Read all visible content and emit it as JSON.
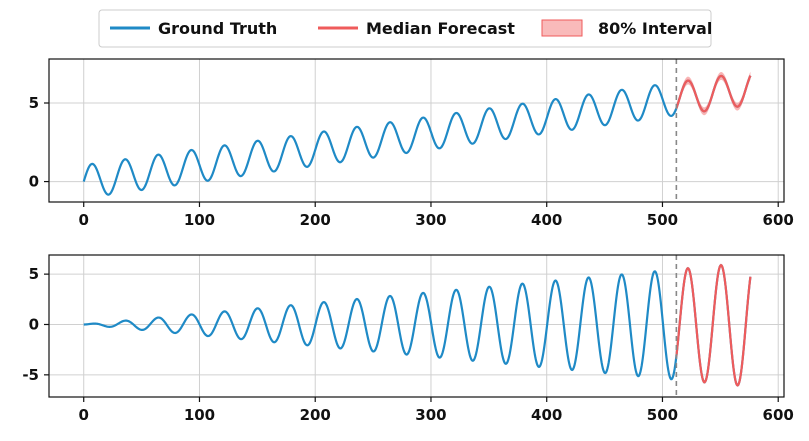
{
  "chart_data": [
    {
      "type": "line",
      "xlim": [
        -30,
        605
      ],
      "ylim": [
        -1.3,
        7.8
      ],
      "xticks": [
        0,
        100,
        200,
        300,
        400,
        500,
        600
      ],
      "xtick_labels": [
        "0",
        "100",
        "200",
        "300",
        "400",
        "500",
        "600"
      ],
      "yticks": [
        0,
        5
      ],
      "ytick_labels": [
        "0",
        "5"
      ],
      "forecast_start": 512,
      "grid": true,
      "series": [
        {
          "name": "Ground Truth",
          "color": "#1f8ac6",
          "x_range": [
            0,
            576
          ],
          "model": "trend_plus_sine",
          "trend_per_step": 0.0103,
          "amplitude": 1.05,
          "period": 28.6
        },
        {
          "name": "Median Forecast",
          "color": "#ef5b5b",
          "x_range": [
            512,
            576
          ],
          "model": "trend_plus_sine",
          "trend_per_step": 0.0103,
          "amplitude": 1.05,
          "period": 28.6
        }
      ],
      "interval": {
        "name": "80% Interval",
        "color": "#f7a3a3",
        "half_width": 0.25
      }
    },
    {
      "type": "line",
      "xlim": [
        -30,
        605
      ],
      "ylim": [
        -7.2,
        6.9
      ],
      "xticks": [
        0,
        100,
        200,
        300,
        400,
        500,
        600
      ],
      "xtick_labels": [
        "0",
        "100",
        "200",
        "300",
        "400",
        "500",
        "600"
      ],
      "yticks": [
        -5,
        0,
        5
      ],
      "ytick_labels": [
        "-5",
        "0",
        "5"
      ],
      "forecast_start": 512,
      "grid": true,
      "series": [
        {
          "name": "Ground Truth",
          "color": "#1f8ac6",
          "x_range": [
            0,
            576
          ],
          "model": "growing_sine",
          "amplitude_per_step": 0.0107,
          "period": 28.6
        },
        {
          "name": "Median Forecast",
          "color": "#ef5b5b",
          "x_range": [
            512,
            576
          ],
          "model": "growing_sine",
          "amplitude_per_step": 0.0107,
          "period": 28.6
        }
      ],
      "interval": {
        "name": "80% Interval",
        "color": "#f7a3a3",
        "half_width": 0.15
      }
    }
  ],
  "legend": {
    "placement": "top-center",
    "items": [
      {
        "label": "Ground Truth",
        "kind": "line",
        "color": "#1f8ac6"
      },
      {
        "label": "Median Forecast",
        "kind": "line",
        "color": "#ef5b5b"
      },
      {
        "label": "80% Interval",
        "kind": "patch",
        "color": "#f7a3a3"
      }
    ]
  }
}
